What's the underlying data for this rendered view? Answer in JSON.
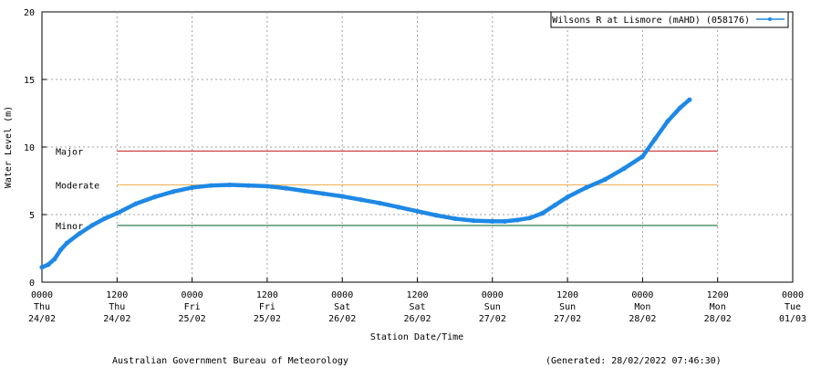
{
  "chart_data": {
    "type": "line",
    "title": "",
    "xlabel": "Station Date/Time",
    "ylabel": "Water Level (m)",
    "ylim": [
      0,
      20
    ],
    "xlim": [
      "2022-02-24 00:00",
      "2022-03-01 00:00"
    ],
    "y_ticks": [
      "0",
      "5",
      "10",
      "15",
      "20"
    ],
    "x_ticks": [
      {
        "time": "0000",
        "day": "Thu",
        "date": "24/02"
      },
      {
        "time": "1200",
        "day": "Thu",
        "date": "24/02"
      },
      {
        "time": "0000",
        "day": "Fri",
        "date": "25/02"
      },
      {
        "time": "1200",
        "day": "Fri",
        "date": "25/02"
      },
      {
        "time": "0000",
        "day": "Sat",
        "date": "26/02"
      },
      {
        "time": "1200",
        "day": "Sat",
        "date": "26/02"
      },
      {
        "time": "0000",
        "day": "Sun",
        "date": "27/02"
      },
      {
        "time": "1200",
        "day": "Sun",
        "date": "27/02"
      },
      {
        "time": "0000",
        "day": "Mon",
        "date": "28/02"
      },
      {
        "time": "1200",
        "day": "Mon",
        "date": "28/02"
      },
      {
        "time": "0000",
        "day": "Tue",
        "date": "01/03"
      }
    ],
    "grid": true,
    "legend_position": "top-right",
    "series": [
      {
        "name": "Wilsons R at Lismore (mAHD) (058176)",
        "color": "#1e88e5",
        "x": [
          "2022-02-24 00:00",
          "2022-02-24 01:00",
          "2022-02-24 02:00",
          "2022-02-24 03:00",
          "2022-02-24 04:00",
          "2022-02-24 06:00",
          "2022-02-24 08:00",
          "2022-02-24 10:00",
          "2022-02-24 12:00",
          "2022-02-24 15:00",
          "2022-02-24 18:00",
          "2022-02-24 21:00",
          "2022-02-25 00:00",
          "2022-02-25 03:00",
          "2022-02-25 06:00",
          "2022-02-25 09:00",
          "2022-02-25 12:00",
          "2022-02-25 15:00",
          "2022-02-25 18:00",
          "2022-02-25 21:00",
          "2022-02-26 00:00",
          "2022-02-26 03:00",
          "2022-02-26 06:00",
          "2022-02-26 09:00",
          "2022-02-26 12:00",
          "2022-02-26 15:00",
          "2022-02-26 18:00",
          "2022-02-26 21:00",
          "2022-02-27 00:00",
          "2022-02-27 02:00",
          "2022-02-27 04:00",
          "2022-02-27 06:00",
          "2022-02-27 08:00",
          "2022-02-27 10:00",
          "2022-02-27 12:00",
          "2022-02-27 15:00",
          "2022-02-27 18:00",
          "2022-02-27 21:00",
          "2022-02-28 00:00",
          "2022-02-28 02:00",
          "2022-02-28 04:00",
          "2022-02-28 06:00",
          "2022-02-28 07:30"
        ],
        "values": [
          1.1,
          1.3,
          1.7,
          2.4,
          2.9,
          3.6,
          4.2,
          4.7,
          5.1,
          5.8,
          6.3,
          6.7,
          7.0,
          7.15,
          7.2,
          7.15,
          7.1,
          6.95,
          6.75,
          6.55,
          6.35,
          6.1,
          5.85,
          5.55,
          5.25,
          4.95,
          4.7,
          4.55,
          4.5,
          4.5,
          4.6,
          4.75,
          5.1,
          5.7,
          6.3,
          7.0,
          7.6,
          8.4,
          9.3,
          10.6,
          11.9,
          12.9,
          13.5
        ]
      }
    ],
    "thresholds": [
      {
        "label": "Major",
        "value": 9.7,
        "color": "#cc3333",
        "x_start": "2022-02-24 12:00",
        "x_end": "2022-02-28 12:00"
      },
      {
        "label": "Moderate",
        "value": 7.2,
        "color": "#f0b45a",
        "x_start": "2022-02-24 12:00",
        "x_end": "2022-02-28 12:00"
      },
      {
        "label": "Minor",
        "value": 4.2,
        "color": "#2e7d4f",
        "x_start": "2022-02-24 12:00",
        "x_end": "2022-02-28 12:00"
      }
    ]
  },
  "footer": {
    "left": "Australian Government Bureau of Meteorology",
    "right": "(Generated: 28/02/2022 07:46:30)"
  }
}
